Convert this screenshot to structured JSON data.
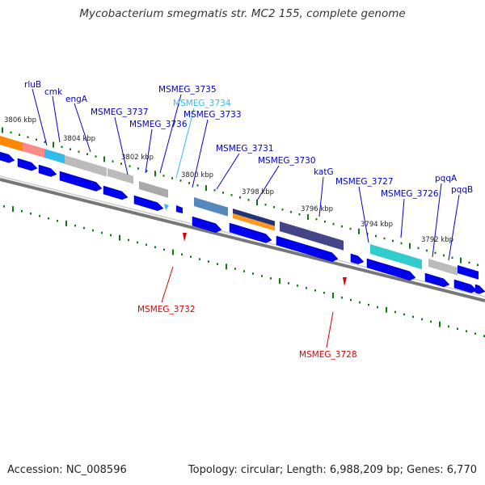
{
  "title": "Mycobacterium smegmatis str. MC2 155, complete genome",
  "footer": {
    "accession": "Accession: NC_008596",
    "topology": "Topology: circular; Length: 6,988,209 bp; Genes: 6,770"
  },
  "colors": {
    "forward_label": "#0000cc",
    "reverse_label": "#dd0000",
    "highlight_label": "#33bbee",
    "gene_arrow": "#0000ee",
    "tick": "#117711",
    "backbone": "#777777"
  },
  "kbp_ticks": [
    "3806 kbp",
    "3804 kbp",
    "3802 kbp",
    "3800 kbp",
    "3798 kbp",
    "3796 kbp",
    "3794 kbp",
    "3792 kbp"
  ],
  "forward_labels": [
    "rluB",
    "cmk",
    "engA",
    "MSMEG_3737",
    "MSMEG_3736",
    "MSMEG_3735",
    "MSMEG_3734",
    "MSMEG_3733",
    "MSMEG_3731",
    "MSMEG_3730",
    "katG",
    "MSMEG_3727",
    "MSMEG_3726",
    "pqqA",
    "pqqB"
  ],
  "reverse_labels": [
    "MSMEG_3732",
    "MSMEG_3728"
  ]
}
